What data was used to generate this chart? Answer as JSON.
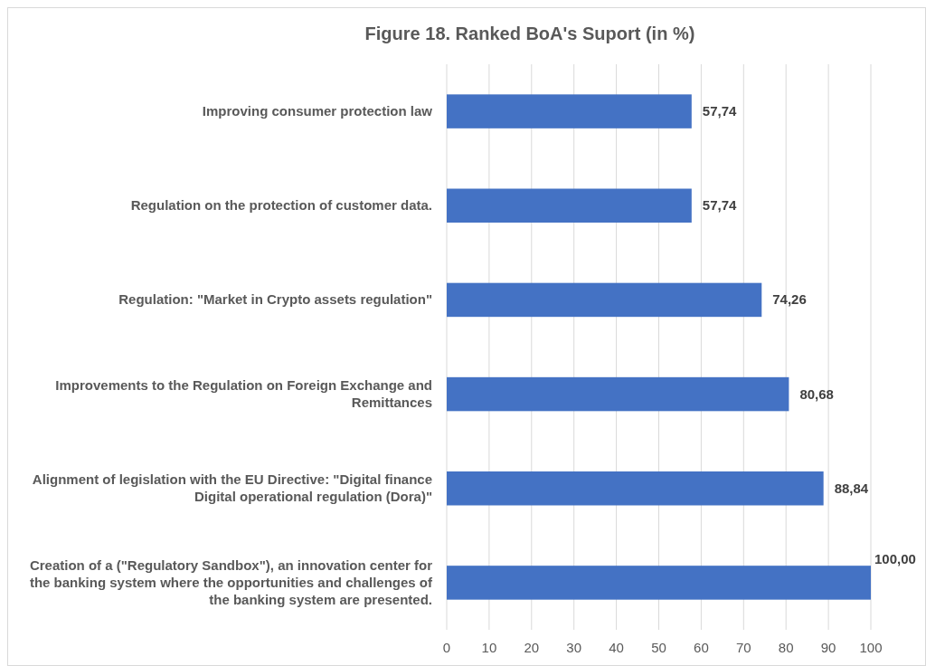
{
  "chart_data": {
    "type": "bar",
    "orientation": "horizontal",
    "title": "Figure 18. Ranked BoA's Suport (in %)",
    "categories": [
      "Improving consumer protection law",
      "Regulation on the protection of customer data.",
      "Regulation: \"Market in Crypto assets regulation\"",
      "Improvements to the Regulation on Foreign Exchange and Remittances",
      "Alignment of legislation with the EU Directive: \"Digital finance Digital operational regulation (Dora)\"",
      "Creation of a (\"Regulatory Sandbox\"), an innovation center for the banking system where the opportunities and challenges of the banking system are presented."
    ],
    "values": [
      57.74,
      57.74,
      74.26,
      80.68,
      88.84,
      100
    ],
    "value_labels": [
      "57,74",
      "57,74",
      "74,26",
      "80,68",
      "88,84",
      "100,00"
    ],
    "color": "#4472c4",
    "xlim": [
      0,
      100
    ],
    "xticks": [
      0,
      10,
      20,
      30,
      40,
      50,
      60,
      70,
      80,
      90,
      100
    ],
    "grid": "x"
  }
}
